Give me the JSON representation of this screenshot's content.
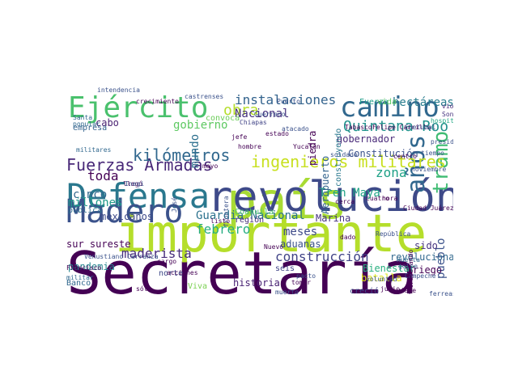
{
  "word_cloud": {
    "words": [
      {
        "text": "Secretaría",
        "color": "#440154"
      },
      {
        "text": "importante",
        "color": "#b5de2b"
      },
      {
        "text": "país",
        "color": "#a8db34"
      },
      {
        "text": "revolución",
        "color": "#3e4a89"
      },
      {
        "text": "Defensa",
        "color": "#2a788e"
      },
      {
        "text": "Madero",
        "color": "#3b528b"
      },
      {
        "text": "Ejército",
        "color": "#4ac16d"
      },
      {
        "text": "camino",
        "color": "#31688e"
      },
      {
        "text": "años",
        "color": "#31688e"
      },
      {
        "text": "tramo",
        "color": "#3fbc73"
      },
      {
        "text": "ingenieros militares",
        "color": "#c8e020"
      },
      {
        "text": "Fuerzas Armadas",
        "color": "#482878"
      },
      {
        "text": "kilómetros",
        "color": "#31688e"
      },
      {
        "text": "instalaciones",
        "color": "#33638d"
      },
      {
        "text": "Quintana Roo",
        "color": "#21918c"
      },
      {
        "text": "obra",
        "color": "#b5de2b"
      },
      {
        "text": "gobierno",
        "color": "#5ec962"
      },
      {
        "text": "maderista",
        "color": "#472d7b"
      },
      {
        "text": "construcción",
        "color": "#414487"
      },
      {
        "text": "Guardia Nacional",
        "color": "#2c728e"
      },
      {
        "text": "hectáreas",
        "color": "#287d8e"
      },
      {
        "text": "pueblo",
        "color": "#3b528b"
      },
      {
        "text": "zona",
        "color": "#1fa187"
      },
      {
        "text": "toda",
        "color": "#440154"
      },
      {
        "text": "cinco",
        "color": "#31688e"
      },
      {
        "text": "febrero",
        "color": "#27ad81"
      },
      {
        "text": "mundo",
        "color": "#2d708e"
      },
      {
        "text": "millones",
        "color": "#1f9a8a"
      },
      {
        "text": "Tren Maya",
        "color": "#20a486"
      },
      {
        "text": "Nacional",
        "color": "#46327e"
      },
      {
        "text": "sur sureste",
        "color": "#440154"
      },
      {
        "text": "meses",
        "color": "#3e4a89"
      },
      {
        "text": "cabo",
        "color": "#481f70"
      },
      {
        "text": "riego",
        "color": "#440154"
      },
      {
        "text": "sido",
        "color": "#46337f"
      },
      {
        "text": "Constitución",
        "color": "#3b528b"
      },
      {
        "text": "gobernador",
        "color": "#482878"
      },
      {
        "text": "revolucionario",
        "color": "#31688e"
      },
      {
        "text": "mexicanos",
        "color": "#3e4a89"
      },
      {
        "text": "Marina",
        "color": "#46337f"
      },
      {
        "text": "aduanas",
        "color": "#3b528b"
      },
      {
        "text": "norte",
        "color": "#3e4a89"
      },
      {
        "text": "historia",
        "color": "#482173"
      },
      {
        "text": "pandemia",
        "color": "#25848e"
      },
      {
        "text": "Bienestar",
        "color": "#29af7f"
      },
      {
        "text": "batalla",
        "color": "#dde318"
      },
      {
        "text": "región",
        "color": "#472d7b"
      },
      {
        "text": "Aeropuerto",
        "color": "#33638d"
      },
      {
        "text": "construyendo",
        "color": "#2a788e"
      },
      {
        "text": "piedra",
        "color": "#440154"
      },
      {
        "text": "Fuerza",
        "color": "#1f9e89"
      },
      {
        "text": "vida",
        "color": "#5ec962"
      },
      {
        "text": "Viva",
        "color": "#7ad151"
      },
      {
        "text": "Coahuila",
        "color": "#4ac16d"
      },
      {
        "text": "empresa",
        "color": "#33638d"
      },
      {
        "text": "seis",
        "color": "#414487"
      },
      {
        "text": "pública",
        "color": "#2e6e8e"
      },
      {
        "text": "creció",
        "color": "#3e4a89"
      },
      {
        "text": "convoca",
        "color": "#6ccd5a"
      },
      {
        "text": "Banco",
        "color": "#31688e"
      },
      {
        "text": "Venustiano Carranza",
        "color": "#3b528b"
      },
      {
        "text": "Ciudad Juárez",
        "color": "#440154"
      },
      {
        "text": "Campeche",
        "color": "#3b528b"
      },
      {
        "text": "Chiapas",
        "color": "#414487"
      },
      {
        "text": "intendencia",
        "color": "#3b528b"
      },
      {
        "text": "castrenses",
        "color": "#3b528b"
      },
      {
        "text": "violencia",
        "color": "#482878"
      },
      {
        "text": "Sonora",
        "color": "#46337f"
      },
      {
        "text": "hospitales",
        "color": "#22a884"
      },
      {
        "text": "Felipe Carrillo",
        "color": "#440154"
      },
      {
        "text": "Tabasco",
        "color": "#440154"
      },
      {
        "text": "Chetumal",
        "color": "#3b528b"
      },
      {
        "text": "Guerrero",
        "color": "#3b528b"
      },
      {
        "text": "Santa",
        "color": "#31688e"
      },
      {
        "text": "Nuevo",
        "color": "#440154"
      },
      {
        "text": "llegó",
        "color": "#440154"
      },
      {
        "text": "presidente",
        "color": "#3b528b"
      },
      {
        "text": "jefe",
        "color": "#440154"
      },
      {
        "text": "tiempo",
        "color": "#3b528b"
      },
      {
        "text": "centro",
        "color": "#440154"
      },
      {
        "text": "Huerta",
        "color": "#31688e"
      },
      {
        "text": "golpe",
        "color": "#3b528b"
      },
      {
        "text": "trabajando",
        "color": "#440154"
      },
      {
        "text": "junio",
        "color": "#440154"
      },
      {
        "text": "voluntad",
        "color": "#3b528b"
      },
      {
        "text": "República",
        "color": "#3b528b"
      },
      {
        "text": "tomar",
        "color": "#440154"
      },
      {
        "text": "pacto",
        "color": "#3b528b"
      },
      {
        "text": "sólo",
        "color": "#440154"
      },
      {
        "text": "cargo",
        "color": "#440154"
      },
      {
        "text": "acciones",
        "color": "#440154"
      },
      {
        "text": "Inegi",
        "color": "#3b528b"
      },
      {
        "text": "crecimiento",
        "color": "#440154"
      },
      {
        "text": "hombre",
        "color": "#440154"
      },
      {
        "text": "atacado",
        "color": "#3b528b"
      },
      {
        "text": "ferreas",
        "color": "#3b528b"
      },
      {
        "text": "cuatro",
        "color": "#440154"
      },
      {
        "text": "hora",
        "color": "#440154"
      },
      {
        "text": "Yucatán",
        "color": "#440154"
      },
      {
        "text": "soldado",
        "color": "#3b528b"
      },
      {
        "text": "militar",
        "color": "#31688e"
      },
      {
        "text": "militares",
        "color": "#31688e"
      },
      {
        "text": "listo",
        "color": "#440154"
      },
      {
        "text": "frontera",
        "color": "#3b528b"
      },
      {
        "text": "cerca",
        "color": "#440154"
      },
      {
        "text": "dado",
        "color": "#440154"
      },
      {
        "text": "José",
        "color": "#3b528b"
      },
      {
        "text": "estado",
        "color": "#440154"
      },
      {
        "text": "popular",
        "color": "#31688e"
      },
      {
        "text": "Francisco",
        "color": "#440154"
      },
      {
        "text": "noviembre",
        "color": "#3b528b"
      },
      {
        "text": "mayo",
        "color": "#440154"
      },
      {
        "text": "viaje",
        "color": "#440154"
      },
      {
        "text": "muerto",
        "color": "#3b528b"
      },
      {
        "text": "Puerto",
        "color": "#3b528b"
      }
    ]
  }
}
